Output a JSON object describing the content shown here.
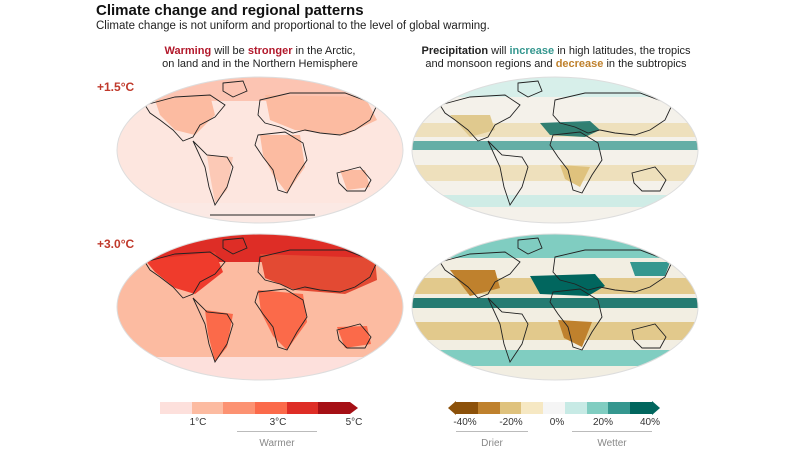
{
  "title": "Climate change and regional patterns",
  "subtitle": "Climate change is not uniform and proportional to the level of global warming.",
  "left_heading": {
    "w1": "Warming",
    "t1": " will be ",
    "w2": "stronger",
    "t2": " in the Arctic,",
    "line2": "on land and in the Northern Hemisphere"
  },
  "right_heading": {
    "w1": "Precipitation",
    "t1": " will ",
    "w2": "increase",
    "t2": " in high latitudes, the tropics",
    "t3": "and monsoon regions and ",
    "w3": "decrease",
    "t4": " in the subtropics"
  },
  "scenarios": [
    "+1.5°C",
    "+3.0°C"
  ],
  "temp_legend": {
    "colors": [
      "#fde0dc",
      "#fcbba1",
      "#fc9272",
      "#fb6a4a",
      "#de2d26",
      "#a50f15"
    ],
    "ticks": [
      "1°C",
      "3°C",
      "5°C"
    ],
    "label": "Warmer"
  },
  "precip_legend": {
    "colors": [
      "#8c510a",
      "#bf812d",
      "#dfc27d",
      "#f6e8c3",
      "#f5f5f5",
      "#c7eae5",
      "#80cdc1",
      "#35978f",
      "#01665e"
    ],
    "ticks": [
      "-40%",
      "-20%",
      "0%",
      "20%",
      "40%"
    ],
    "drier_label": "Drier",
    "wetter_label": "Wetter"
  }
}
